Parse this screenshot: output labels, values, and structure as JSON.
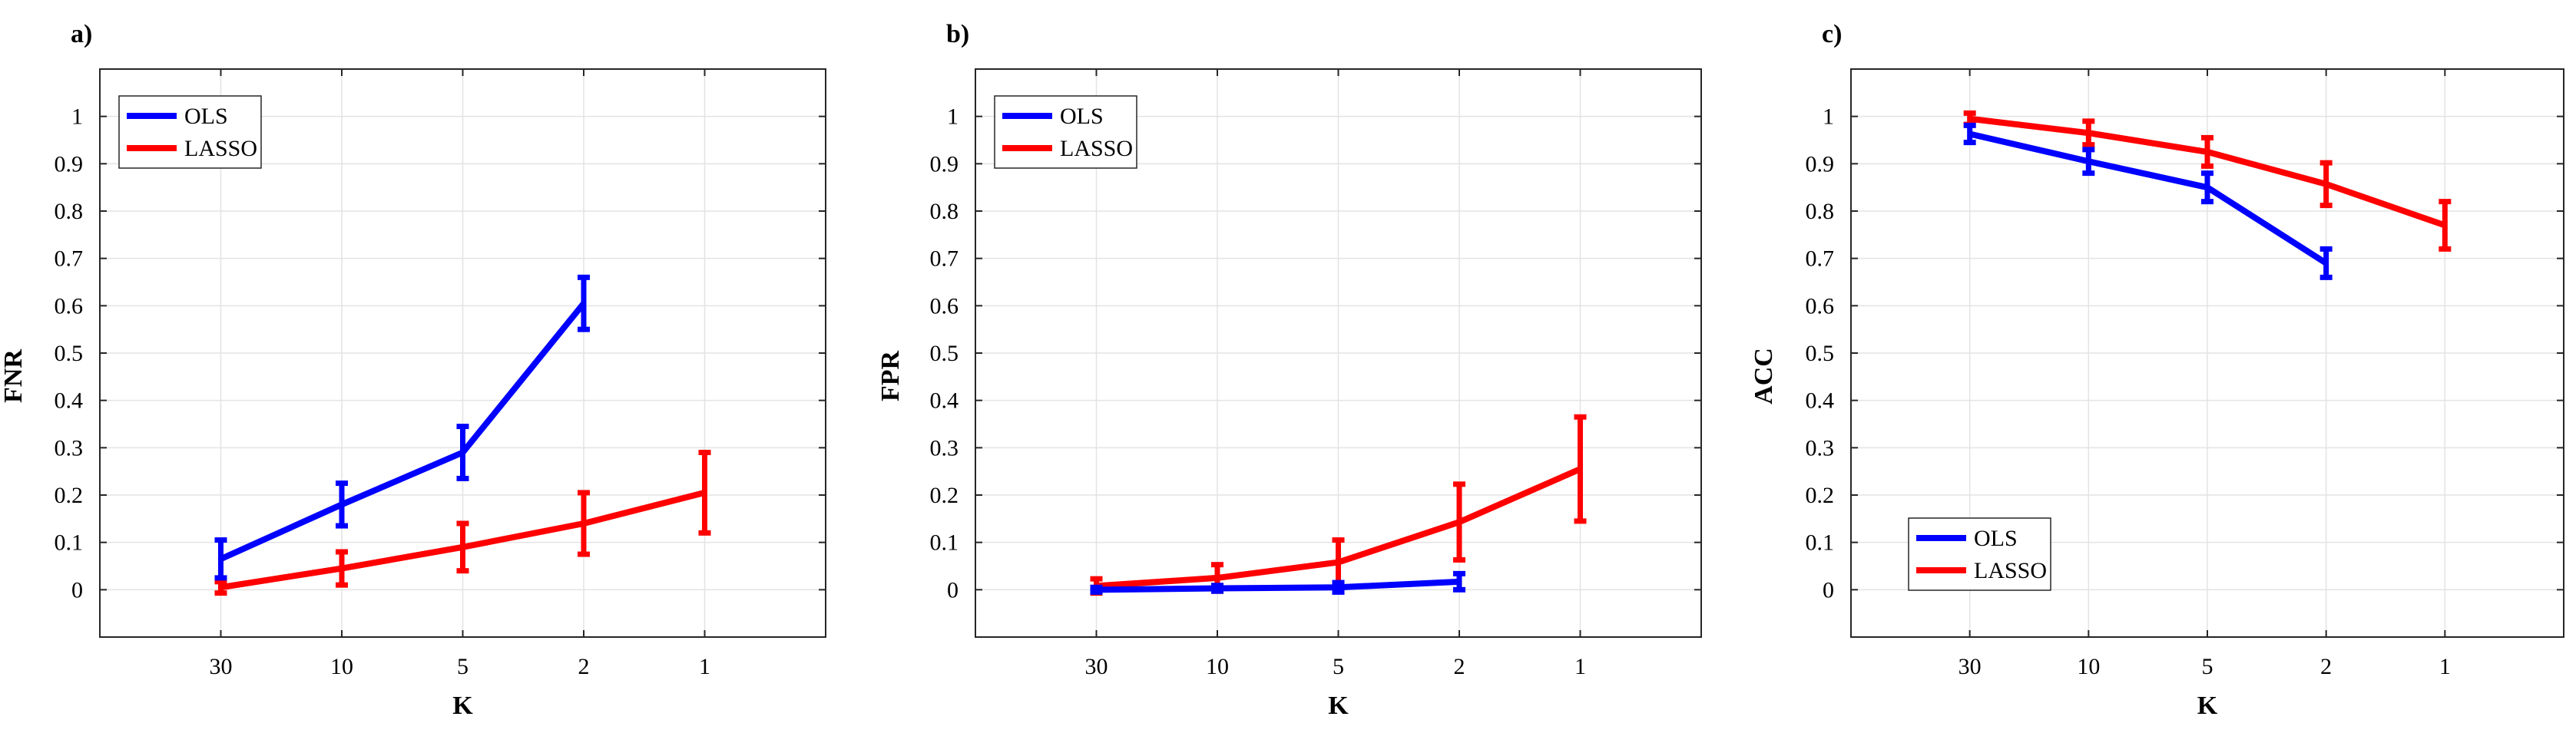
{
  "chart_data": [
    {
      "type": "line",
      "panel_label": "a)",
      "title": "",
      "xlabel": "K",
      "ylabel": "FNR",
      "categories": [
        "30",
        "10",
        "5",
        "2",
        "1"
      ],
      "ylim": [
        -0.1,
        1.1
      ],
      "yticks": [
        "0",
        "0.1",
        "0.2",
        "0.3",
        "0.4",
        "0.5",
        "0.6",
        "0.7",
        "0.8",
        "0.9",
        "1"
      ],
      "grid": true,
      "legend_position": "top-left",
      "series": [
        {
          "name": "OLS",
          "color": "#0000ff",
          "values": [
            0.065,
            0.18,
            0.29,
            0.605,
            null
          ],
          "errors": [
            0.04,
            0.045,
            0.055,
            0.055,
            null
          ]
        },
        {
          "name": "LASSO",
          "color": "#ff0000",
          "values": [
            0.005,
            0.045,
            0.09,
            0.14,
            0.205
          ],
          "errors": [
            0.012,
            0.035,
            0.05,
            0.065,
            0.085
          ]
        }
      ]
    },
    {
      "type": "line",
      "panel_label": "b)",
      "title": "",
      "xlabel": "K",
      "ylabel": "FPR",
      "categories": [
        "30",
        "10",
        "5",
        "2",
        "1"
      ],
      "ylim": [
        -0.1,
        1.1
      ],
      "yticks": [
        "0",
        "0.1",
        "0.2",
        "0.3",
        "0.4",
        "0.5",
        "0.6",
        "0.7",
        "0.8",
        "0.9",
        "1"
      ],
      "grid": true,
      "legend_position": "top-left",
      "series": [
        {
          "name": "OLS",
          "color": "#0000ff",
          "values": [
            0.0,
            0.003,
            0.005,
            0.017,
            null
          ],
          "errors": [
            0.005,
            0.006,
            0.01,
            0.017,
            null
          ]
        },
        {
          "name": "LASSO",
          "color": "#ff0000",
          "values": [
            0.008,
            0.025,
            0.058,
            0.143,
            0.255
          ],
          "errors": [
            0.015,
            0.028,
            0.047,
            0.08,
            0.11
          ]
        }
      ]
    },
    {
      "type": "line",
      "panel_label": "c)",
      "title": "",
      "xlabel": "K",
      "ylabel": "ACC",
      "categories": [
        "30",
        "10",
        "5",
        "2",
        "1"
      ],
      "ylim": [
        -0.1,
        1.1
      ],
      "yticks": [
        "0",
        "0.1",
        "0.2",
        "0.3",
        "0.4",
        "0.5",
        "0.6",
        "0.7",
        "0.8",
        "0.9",
        "1"
      ],
      "grid": true,
      "legend_position": "bottom-left",
      "series": [
        {
          "name": "OLS",
          "color": "#0000ff",
          "values": [
            0.963,
            0.905,
            0.85,
            0.69,
            null
          ],
          "errors": [
            0.018,
            0.025,
            0.03,
            0.03,
            null
          ]
        },
        {
          "name": "LASSO",
          "color": "#ff0000",
          "values": [
            0.995,
            0.965,
            0.925,
            0.857,
            0.77
          ],
          "errors": [
            0.012,
            0.025,
            0.03,
            0.045,
            0.05
          ]
        }
      ]
    }
  ]
}
